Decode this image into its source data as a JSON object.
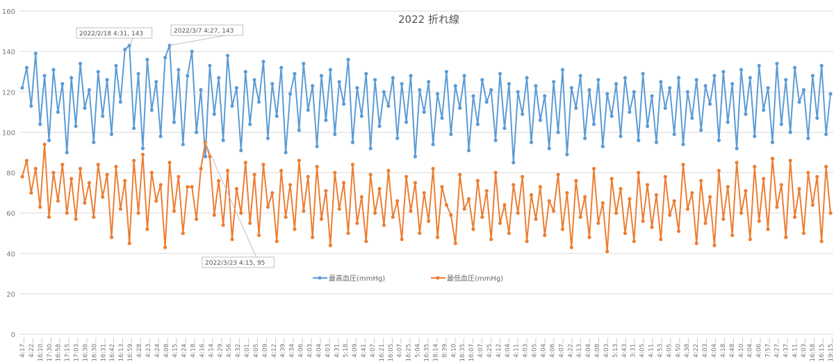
{
  "chart_data": {
    "type": "line",
    "title": "2022  折れ線",
    "ylim": [
      0,
      160
    ],
    "yticks": [
      0,
      20,
      40,
      60,
      80,
      100,
      120,
      140,
      160
    ],
    "grid": true,
    "legend_position": "bottom",
    "x_tick_labels": [
      "4:17",
      "4:22",
      "16:10",
      "17:30",
      "16:58",
      "17:15",
      "17:03",
      "16:36",
      "16:30",
      "16:31",
      "16:42",
      "16:13",
      "16:59",
      "4:28",
      "4:23",
      "4:24",
      "4:08",
      "4:15",
      "4:24",
      "4:18",
      "4:16",
      "4:14",
      "4:29",
      "4:56",
      "4:32",
      "4:01",
      "4:05",
      "4:09",
      "4:12",
      "4:39",
      "4:34",
      "4:06",
      "4:03",
      "4:04",
      "4:03",
      "4:31",
      "5:18",
      "4:09",
      "4:41",
      "4:07",
      "16:21",
      "16:05",
      "4:07",
      "16:25",
      "5:04",
      "16:35",
      "18:14",
      "8:39",
      "4:10",
      "16:35",
      "16:07",
      "4:07",
      "4:25",
      "4:12",
      "4:04",
      "4:11",
      "4:03",
      "4:05",
      "4:04",
      "4:06",
      "4:07",
      "4:22",
      "4:13",
      "4:04",
      "4:08",
      "4:03",
      "5:13",
      "4:43",
      "3:31",
      "4:05",
      "4:11",
      "4:53",
      "4:05",
      "4:50",
      "4:38",
      "4:22",
      "4:03",
      "4:04",
      "4:18",
      "4:48",
      "4:10",
      "4:04",
      "4:06",
      "7:57",
      "4:27",
      "4:37",
      "4:11",
      "4:03",
      "16:58",
      "16:15",
      "19:15"
    ],
    "series": [
      {
        "name": "最高血圧(mmHg)",
        "color": "#5B9BD5",
        "values": [
          122,
          132,
          113,
          139,
          104,
          128,
          96,
          131,
          110,
          124,
          90,
          127,
          103,
          134,
          112,
          121,
          95,
          130,
          108,
          126,
          99,
          133,
          115,
          141,
          143,
          102,
          129,
          92,
          136,
          111,
          125,
          98,
          137,
          143,
          105,
          131,
          94,
          128,
          140,
          100,
          121,
          88,
          133,
          109,
          127,
          96,
          138,
          113,
          122,
          91,
          130,
          104,
          126,
          115,
          135,
          97,
          124,
          108,
          132,
          90,
          119,
          129,
          101,
          134,
          111,
          123,
          93,
          128,
          106,
          131,
          99,
          125,
          114,
          136,
          95,
          122,
          108,
          129,
          92,
          126,
          103,
          120,
          113,
          127,
          97,
          124,
          105,
          128,
          88,
          121,
          110,
          125,
          94,
          119,
          107,
          130,
          99,
          123,
          112,
          128,
          91,
          118,
          104,
          126,
          115,
          121,
          96,
          129,
          102,
          124,
          85,
          120,
          109,
          127,
          95,
          123,
          106,
          118,
          92,
          125,
          100,
          131,
          89,
          122,
          112,
          128,
          97,
          121,
          104,
          126,
          93,
          119,
          108,
          124,
          98,
          127,
          110,
          120,
          96,
          129,
          103,
          118,
          95,
          125,
          112,
          122,
          99,
          127,
          94,
          120,
          107,
          126,
          101,
          123,
          114,
          128,
          96,
          130,
          105,
          124,
          92,
          131,
          109,
          127,
          98,
          133,
          111,
          122,
          95,
          134,
          104,
          126,
          100,
          132,
          115,
          121,
          97,
          128,
          107,
          133,
          99,
          119
        ]
      },
      {
        "name": "最低血圧(mmHg)",
        "color": "#ED7D31",
        "values": [
          78,
          86,
          70,
          82,
          63,
          94,
          58,
          80,
          66,
          84,
          60,
          77,
          57,
          82,
          65,
          75,
          58,
          84,
          68,
          79,
          48,
          83,
          62,
          76,
          45,
          86,
          60,
          89,
          52,
          80,
          66,
          74,
          43,
          85,
          61,
          78,
          50,
          73,
          73,
          57,
          82,
          95,
          88,
          59,
          76,
          54,
          81,
          47,
          72,
          60,
          85,
          55,
          79,
          49,
          84,
          63,
          70,
          46,
          81,
          58,
          74,
          52,
          86,
          61,
          78,
          48,
          83,
          57,
          71,
          44,
          80,
          62,
          75,
          50,
          84,
          55,
          68,
          46,
          79,
          60,
          72,
          54,
          81,
          58,
          66,
          47,
          78,
          61,
          75,
          50,
          70,
          56,
          82,
          48,
          73,
          64,
          59,
          45,
          79,
          62,
          67,
          52,
          76,
          58,
          71,
          47,
          80,
          55,
          64,
          50,
          74,
          60,
          78,
          46,
          69,
          57,
          73,
          49,
          66,
          61,
          79,
          52,
          70,
          43,
          76,
          58,
          68,
          48,
          82,
          55,
          65,
          41,
          77,
          60,
          72,
          50,
          67,
          46,
          80,
          56,
          74,
          53,
          69,
          47,
          78,
          59,
          66,
          51,
          84,
          62,
          70,
          45,
          76,
          55,
          68,
          44,
          81,
          57,
          73,
          49,
          85,
          60,
          71,
          47,
          83,
          56,
          77,
          52,
          87,
          63,
          74,
          48,
          86,
          58,
          72,
          50,
          80,
          64,
          78,
          46,
          83,
          60
        ]
      }
    ],
    "annotations": [
      {
        "series": 0,
        "point": 24,
        "text": "2022/2/18 4:31, 143"
      },
      {
        "series": 0,
        "point": 33,
        "text": "2022/3/7 4:27, 143"
      },
      {
        "series": 1,
        "point": 41,
        "text": "2022/3/23 4:15, 95"
      }
    ]
  }
}
